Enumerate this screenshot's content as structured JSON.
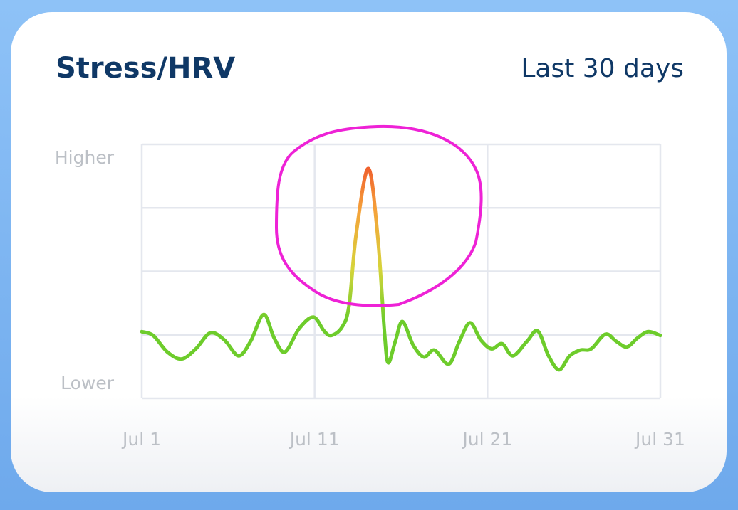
{
  "chart_data": {
    "type": "line",
    "title": "Stress/HRV",
    "subtitle": "Last 30 days",
    "x": [
      1.0,
      1.66,
      2.48,
      3.31,
      4.13,
      4.96,
      5.78,
      6.6,
      7.3,
      8.05,
      8.66,
      9.28,
      10.11,
      10.93,
      11.55,
      11.96,
      12.58,
      12.99,
      13.4,
      14.1,
      14.64,
      15.05,
      15.26,
      15.67,
      16.08,
      16.7,
      17.32,
      17.93,
      18.76,
      19.38,
      19.99,
      20.61,
      21.23,
      21.85,
      22.47,
      23.29,
      23.91,
      24.53,
      25.14,
      25.76,
      26.38,
      27.0,
      27.82,
      28.44,
      29.06,
      29.68,
      30.3,
      31.0
    ],
    "series": [
      {
        "color": "#6dcc2b",
        "values": [
          1.05,
          0.99,
          0.73,
          0.62,
          0.78,
          1.03,
          0.92,
          0.67,
          0.9,
          1.32,
          0.95,
          0.73,
          1.1,
          1.28,
          1.06,
          0.99,
          1.12,
          1.46,
          2.58,
          3.62,
          2.58,
          1.01,
          0.56,
          0.9,
          1.21,
          0.84,
          0.65,
          0.76,
          0.54,
          0.9,
          1.19,
          0.92,
          0.78,
          0.86,
          0.67,
          0.9,
          1.06,
          0.67,
          0.45,
          0.67,
          0.76,
          0.78,
          1.01,
          0.9,
          0.81,
          0.95,
          1.05,
          0.99
        ]
      }
    ],
    "xlim": [
      1,
      31
    ],
    "xticks": [
      {
        "value": 1,
        "label": "Jul 1"
      },
      {
        "value": 11,
        "label": "Jul 11"
      },
      {
        "value": 21,
        "label": "Jul 21"
      },
      {
        "value": 31,
        "label": "Jul 31"
      }
    ],
    "ylim": [
      0,
      4
    ],
    "yticks": [
      {
        "value": 0,
        "label": "Lower"
      },
      {
        "value": 4,
        "label": "Higher"
      }
    ],
    "grid": true
  }
}
